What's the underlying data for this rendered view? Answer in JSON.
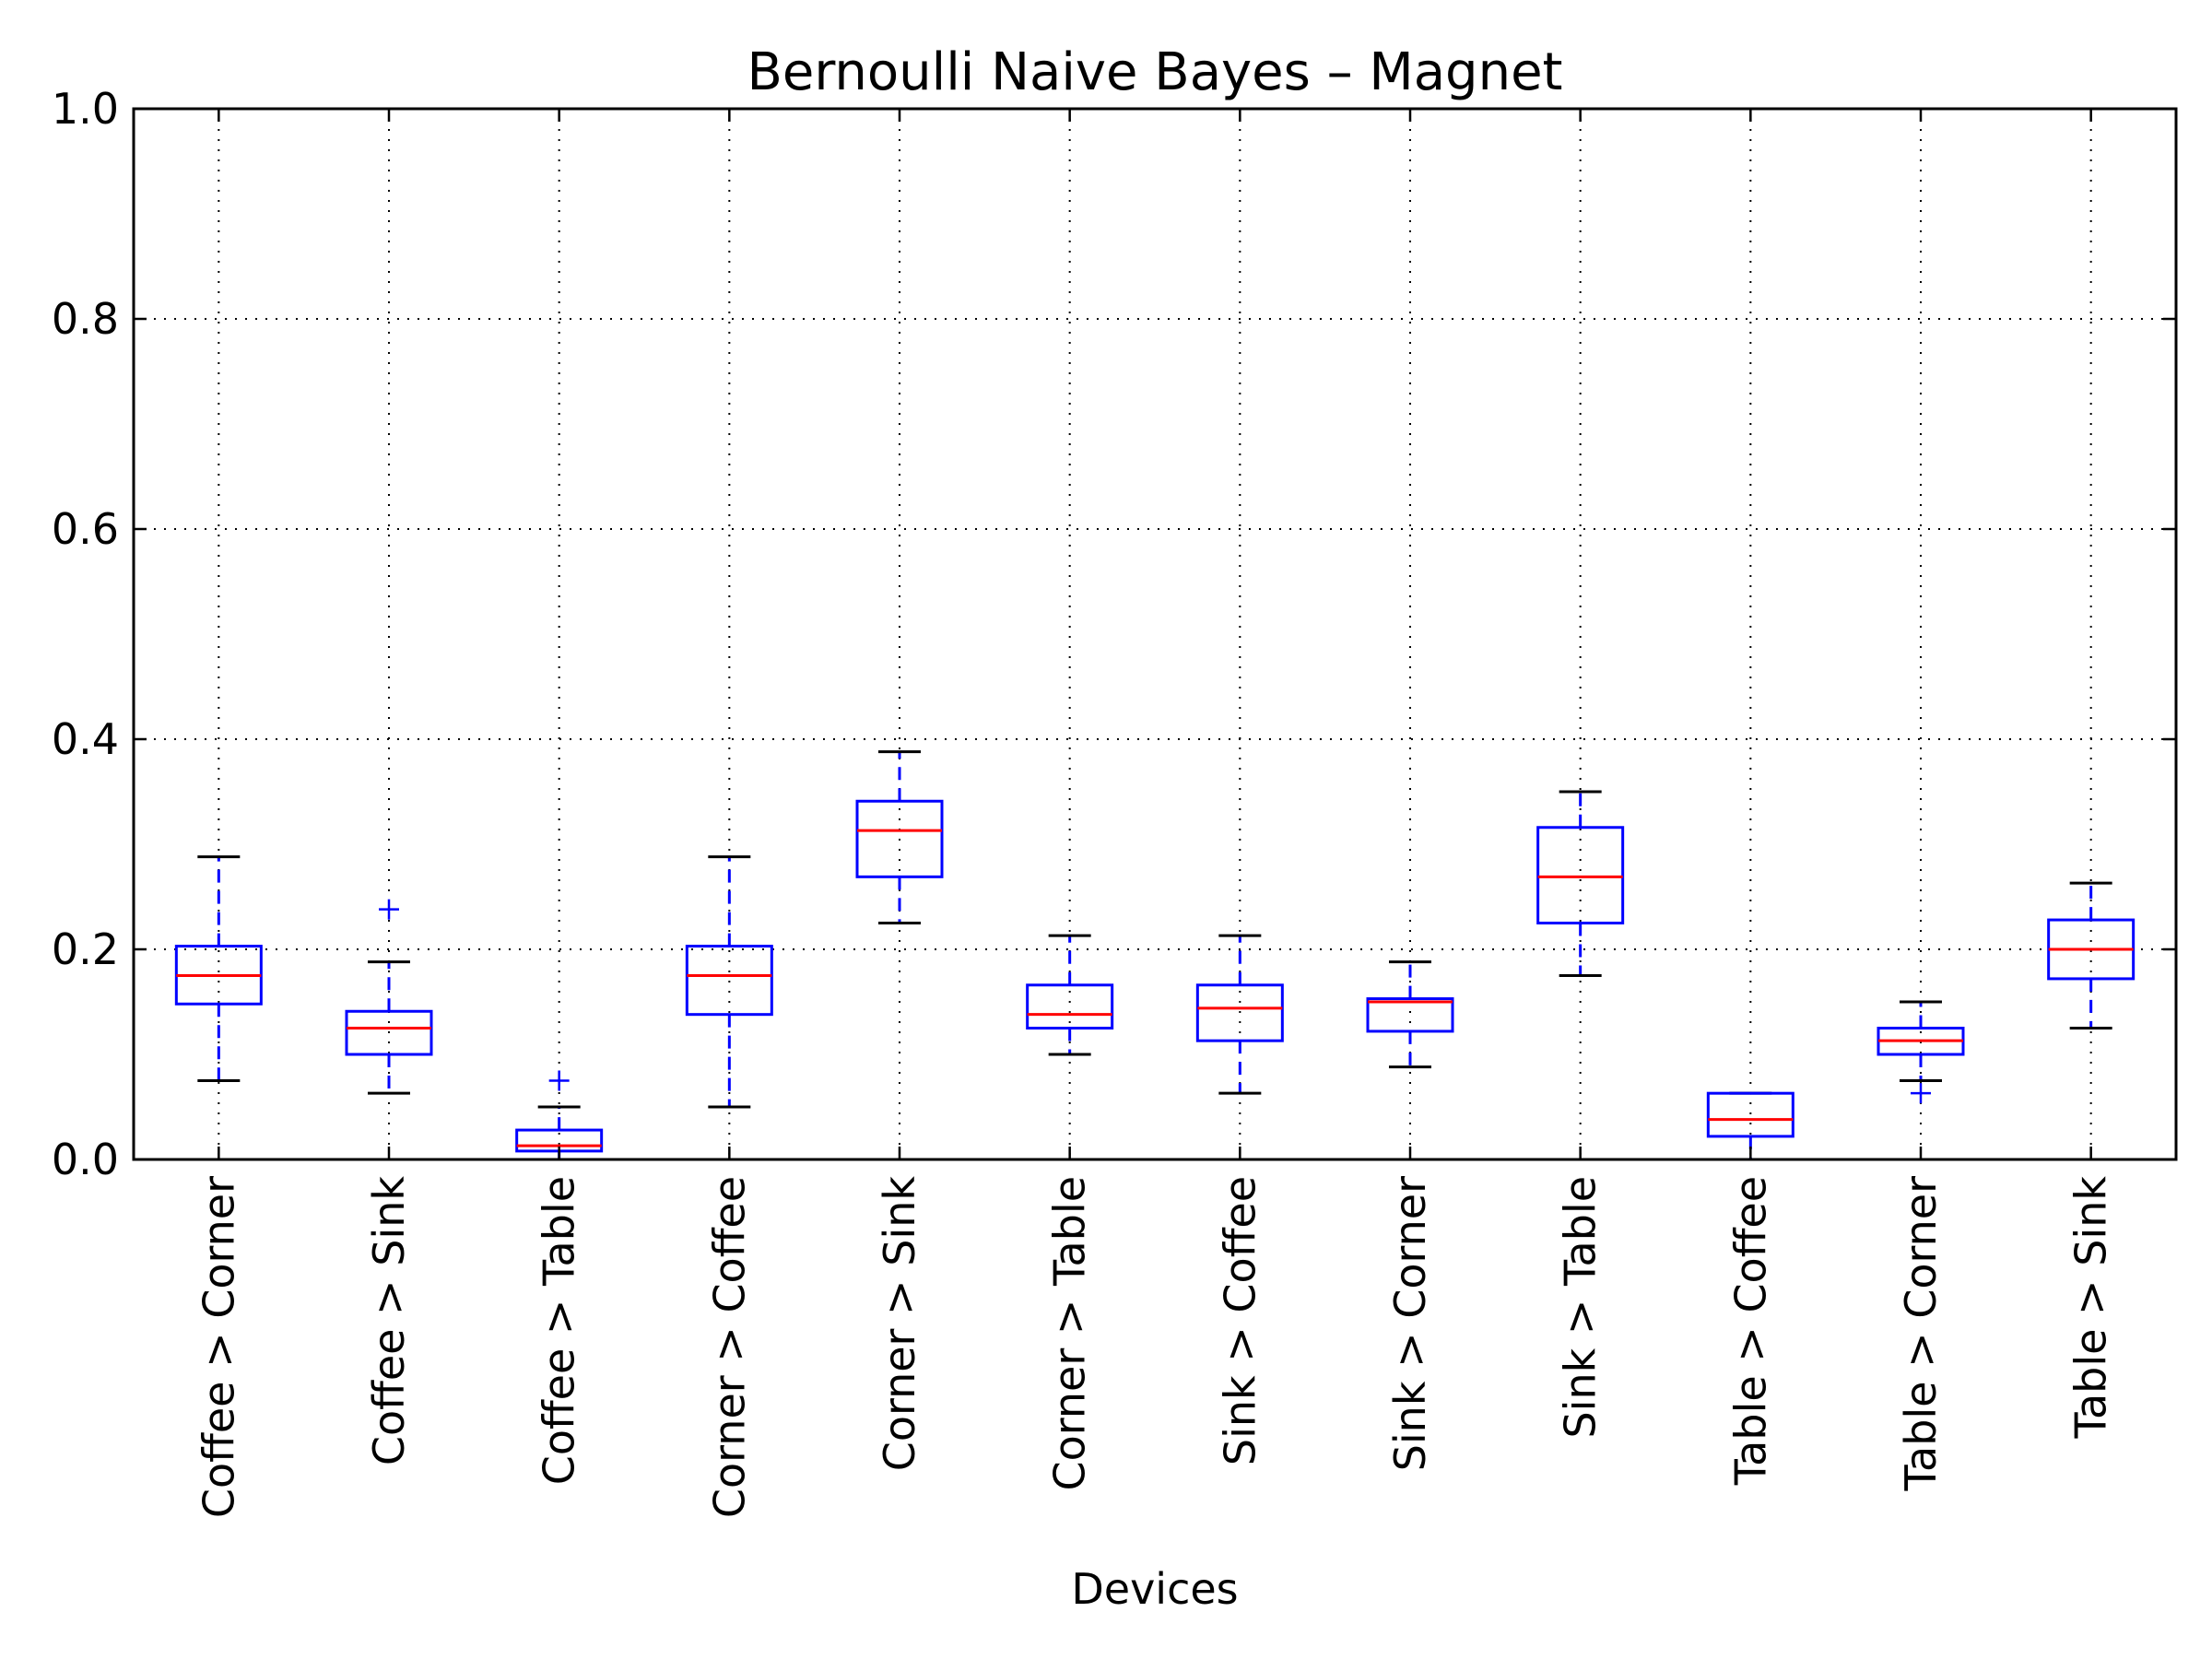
{
  "chart_data": {
    "type": "box",
    "title": "Bernoulli Naive Bayes – Magnet",
    "xlabel": "Devices",
    "ylabel": "",
    "ylim": [
      0.0,
      1.0
    ],
    "yticks": [
      "0.0",
      "0.2",
      "0.4",
      "0.6",
      "0.8",
      "1.0"
    ],
    "grid": true,
    "colors": {
      "box": "#0000ff",
      "median": "#ff0000",
      "cap": "#000000",
      "grid": "#000000"
    },
    "boxes": [
      {
        "label": "Coffee > Corner",
        "whislo": 0.075,
        "q1": 0.148,
        "med": 0.175,
        "q3": 0.203,
        "whishi": 0.288,
        "fliers": []
      },
      {
        "label": "Coffee > Sink",
        "whislo": 0.063,
        "q1": 0.1,
        "med": 0.125,
        "q3": 0.141,
        "whishi": 0.188,
        "fliers": [
          0.238
        ]
      },
      {
        "label": "Coffee > Table",
        "whislo": 0.0,
        "q1": 0.008,
        "med": 0.013,
        "q3": 0.028,
        "whishi": 0.05,
        "fliers": [
          0.075
        ]
      },
      {
        "label": "Corner > Coffee",
        "whislo": 0.05,
        "q1": 0.138,
        "med": 0.175,
        "q3": 0.203,
        "whishi": 0.288,
        "fliers": []
      },
      {
        "label": "Corner > Sink",
        "whislo": 0.225,
        "q1": 0.269,
        "med": 0.313,
        "q3": 0.341,
        "whishi": 0.388,
        "fliers": []
      },
      {
        "label": "Corner > Table",
        "whislo": 0.1,
        "q1": 0.125,
        "med": 0.138,
        "q3": 0.166,
        "whishi": 0.213,
        "fliers": []
      },
      {
        "label": "Sink > Coffee",
        "whislo": 0.063,
        "q1": 0.113,
        "med": 0.144,
        "q3": 0.166,
        "whishi": 0.213,
        "fliers": []
      },
      {
        "label": "Sink > Corner",
        "whislo": 0.088,
        "q1": 0.122,
        "med": 0.15,
        "q3": 0.153,
        "whishi": 0.188,
        "fliers": []
      },
      {
        "label": "Sink > Table",
        "whislo": 0.175,
        "q1": 0.225,
        "med": 0.269,
        "q3": 0.316,
        "whishi": 0.35,
        "fliers": []
      },
      {
        "label": "Table > Coffee",
        "whislo": 0.0,
        "q1": 0.022,
        "med": 0.038,
        "q3": 0.063,
        "whishi": 0.063,
        "fliers": []
      },
      {
        "label": "Table > Corner",
        "whislo": 0.075,
        "q1": 0.1,
        "med": 0.113,
        "q3": 0.125,
        "whishi": 0.15,
        "fliers": [
          0.063
        ]
      },
      {
        "label": "Table > Sink",
        "whislo": 0.125,
        "q1": 0.172,
        "med": 0.2,
        "q3": 0.228,
        "whishi": 0.263,
        "fliers": []
      }
    ]
  }
}
